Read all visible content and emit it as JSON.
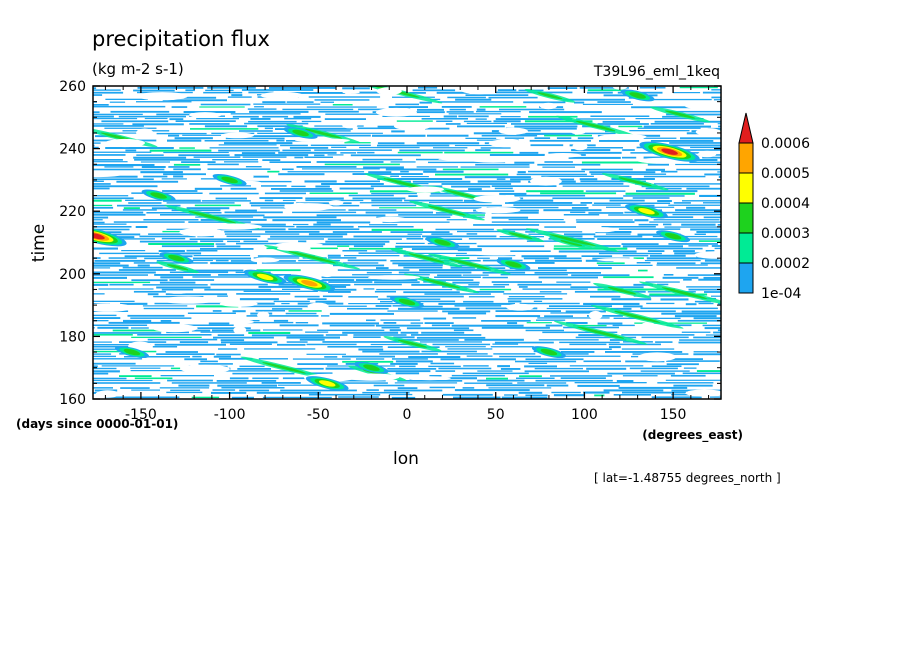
{
  "chart_data": {
    "type": "heatmap",
    "title": "precipitation flux",
    "units": "(kg m-2 s-1)",
    "dataset": "T39L96_eml_1keq",
    "xlabel": "lon",
    "xunits": "(degrees_east)",
    "ylabel": "time",
    "yunits": "(days since 0000-01-01)",
    "annotation": "[ lat=-1.48755 degrees_north ]",
    "xlim": [
      -177,
      177
    ],
    "ylim": [
      160,
      260
    ],
    "xticks": [
      -150,
      -100,
      -50,
      0,
      50,
      100,
      150
    ],
    "yticks": [
      160,
      180,
      200,
      220,
      240,
      260
    ],
    "xtick_labels": [
      "-150",
      "-100",
      "-50",
      "0",
      "50",
      "100",
      "150"
    ],
    "ytick_labels": [
      "160",
      "180",
      "200",
      "220",
      "240",
      "260"
    ],
    "colorbar": {
      "levels": [
        0.0001,
        0.0002,
        0.0003,
        0.0004,
        0.0005,
        0.0006
      ],
      "labels": [
        "1e-04",
        "0.0002",
        "0.0003",
        "0.0004",
        "0.0005",
        "0.0006"
      ],
      "colors": [
        "#1ea5f0",
        "#00eb95",
        "#1ed21e",
        "#ffff00",
        "#ffa500",
        "#e11e1e"
      ],
      "extend": "max"
    },
    "features": [
      {
        "lon": -175,
        "time": 212,
        "level": 6
      },
      {
        "lon": 148,
        "time": 239,
        "level": 6
      },
      {
        "lon": -55,
        "time": 197,
        "level": 5
      },
      {
        "lon": -45,
        "time": 165,
        "level": 4
      },
      {
        "lon": -80,
        "time": 199,
        "level": 4
      },
      {
        "lon": 135,
        "time": 220,
        "level": 4
      },
      {
        "lon": 0,
        "time": 191,
        "level": 3
      },
      {
        "lon": -130,
        "time": 205,
        "level": 3
      },
      {
        "lon": -155,
        "time": 175,
        "level": 3
      },
      {
        "lon": 80,
        "time": 175,
        "level": 3
      },
      {
        "lon": 60,
        "time": 203,
        "level": 3
      },
      {
        "lon": -140,
        "time": 225,
        "level": 3
      },
      {
        "lon": 130,
        "time": 257,
        "level": 3
      },
      {
        "lon": -100,
        "time": 230,
        "level": 3
      },
      {
        "lon": -60,
        "time": 245,
        "level": 3
      },
      {
        "lon": 20,
        "time": 210,
        "level": 3
      },
      {
        "lon": 150,
        "time": 212,
        "level": 3
      },
      {
        "lon": -20,
        "time": 170,
        "level": 3
      }
    ]
  }
}
